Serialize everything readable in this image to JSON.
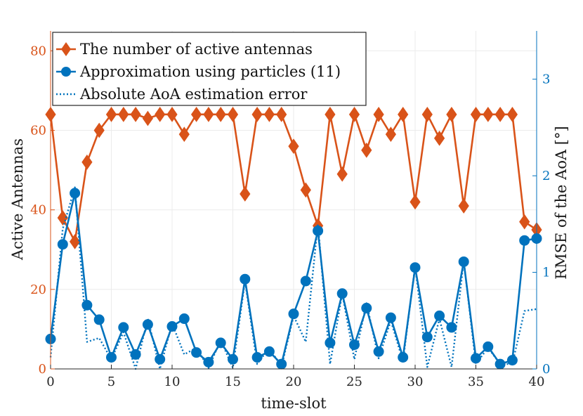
{
  "chart_data": {
    "type": "line",
    "xlabel": "time-slot",
    "ylabel_left": "Active Antennas",
    "ylabel_right": "RMSE of the AoA [°]",
    "xlim": [
      0,
      40
    ],
    "ylim_left": [
      0,
      85
    ],
    "ylim_right": [
      0,
      3.5
    ],
    "x_ticks": [
      0,
      5,
      10,
      15,
      20,
      25,
      30,
      35,
      40
    ],
    "y_left_ticks": [
      0,
      20,
      40,
      60,
      80
    ],
    "y_right_ticks": [
      0,
      1,
      2,
      3
    ],
    "grid": true,
    "legend_position": "top-left",
    "x": [
      0,
      1,
      2,
      3,
      4,
      5,
      6,
      7,
      8,
      9,
      10,
      11,
      12,
      13,
      14,
      15,
      16,
      17,
      18,
      19,
      20,
      21,
      22,
      23,
      24,
      25,
      26,
      27,
      28,
      29,
      30,
      31,
      32,
      33,
      34,
      35,
      36,
      37,
      38,
      39,
      40
    ],
    "series": [
      {
        "name": "The number of active antennas",
        "axis": "left",
        "color": "#d95319",
        "marker": "diamond",
        "style": "solid",
        "values": [
          64,
          38,
          32,
          52,
          60,
          64,
          64,
          64,
          63,
          64,
          64,
          59,
          64,
          64,
          64,
          64,
          44,
          64,
          64,
          64,
          56,
          45,
          36,
          64,
          49,
          64,
          55,
          64,
          59,
          64,
          42,
          64,
          58,
          64,
          41,
          64,
          64,
          64,
          64,
          37,
          35
        ]
      },
      {
        "name": "Approximation using particles (11)",
        "axis": "right",
        "color": "#0072bd",
        "marker": "circle",
        "style": "solid",
        "values": [
          0.31,
          1.29,
          1.82,
          0.66,
          0.51,
          0.12,
          0.43,
          0.15,
          0.46,
          0.1,
          0.44,
          0.52,
          0.17,
          0.07,
          0.27,
          0.1,
          0.93,
          0.12,
          0.18,
          0.05,
          0.57,
          0.91,
          1.43,
          0.27,
          0.78,
          0.25,
          0.63,
          0.18,
          0.53,
          0.12,
          1.05,
          0.33,
          0.55,
          0.43,
          1.11,
          0.11,
          0.23,
          0.05,
          0.09,
          1.33,
          1.35
        ]
      },
      {
        "name": "Absolute AoA estimation error",
        "axis": "right",
        "color": "#0072bd",
        "marker": "none",
        "style": "dotted",
        "values": [
          0.12,
          1.45,
          1.88,
          0.28,
          0.32,
          0.1,
          0.38,
          0.0,
          0.52,
          0.0,
          0.47,
          0.15,
          0.22,
          0.01,
          0.3,
          0.01,
          0.91,
          0.05,
          0.22,
          0.02,
          0.55,
          0.28,
          1.5,
          0.05,
          0.78,
          0.1,
          0.68,
          0.11,
          0.5,
          0.08,
          1.07,
          0.02,
          0.52,
          0.02,
          1.12,
          0.05,
          0.22,
          0.05,
          0.05,
          0.6,
          0.62
        ]
      }
    ]
  }
}
